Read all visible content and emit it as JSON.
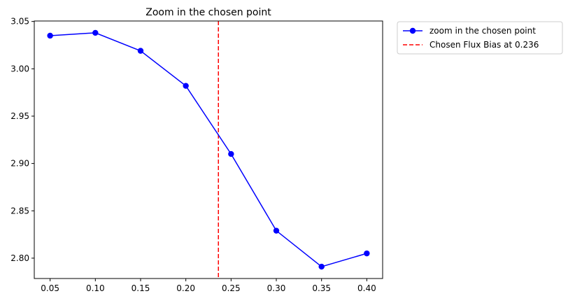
{
  "chart_data": {
    "type": "line",
    "title": "Zoom in the chosen point",
    "xlabel": "",
    "ylabel": "",
    "xlim": [
      0.0325,
      0.4175
    ],
    "ylim": [
      2.7785,
      3.0505
    ],
    "grid": false,
    "x_ticks": [
      0.05,
      0.1,
      0.15,
      0.2,
      0.25,
      0.3,
      0.35,
      0.4
    ],
    "x_tick_labels": [
      "0.05",
      "0.10",
      "0.15",
      "0.20",
      "0.25",
      "0.30",
      "0.35",
      "0.40"
    ],
    "y_ticks": [
      2.8,
      2.85,
      2.9,
      2.95,
      3.0,
      3.05
    ],
    "y_tick_labels": [
      "2.80",
      "2.85",
      "2.90",
      "2.95",
      "3.00",
      "3.05"
    ],
    "series": [
      {
        "name": "zoom in the chosen point",
        "color": "#0000ff",
        "marker": "circle",
        "x": [
          0.05,
          0.1,
          0.15,
          0.2,
          0.25,
          0.3,
          0.35,
          0.4
        ],
        "y": [
          3.035,
          3.038,
          3.019,
          2.982,
          2.91,
          2.829,
          2.791,
          2.805
        ]
      }
    ],
    "vlines": [
      {
        "name": "Chosen Flux Bias at 0.236",
        "x": 0.236,
        "color": "#ff0000",
        "style": "dashed"
      }
    ],
    "legend": {
      "placement": "outside-top-right",
      "entries": [
        "zoom in the chosen point",
        "Chosen Flux Bias at 0.236"
      ]
    }
  }
}
